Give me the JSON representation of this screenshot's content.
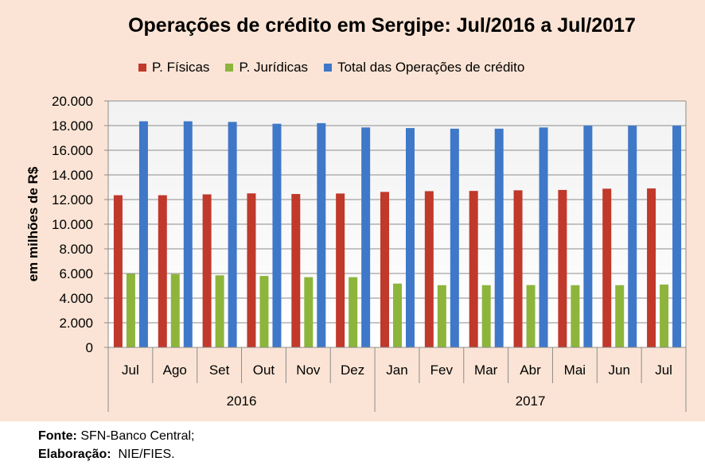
{
  "chart_data": {
    "type": "bar",
    "title": "Operações de crédito em Sergipe: Jul/2016 a Jul/2017",
    "ylabel": "em milhões de R$",
    "xlabel": "",
    "ylim": [
      0,
      20000
    ],
    "yticks": [
      "0",
      "2.000",
      "4.000",
      "6.000",
      "8.000",
      "10.000",
      "12.000",
      "14.000",
      "16.000",
      "18.000",
      "20.000"
    ],
    "ytick_values": [
      0,
      2000,
      4000,
      6000,
      8000,
      10000,
      12000,
      14000,
      16000,
      18000,
      20000
    ],
    "categories": [
      "Jul",
      "Ago",
      "Set",
      "Out",
      "Nov",
      "Dez",
      "Jan",
      "Fev",
      "Mar",
      "Abr",
      "Mai",
      "Jun",
      "Jul"
    ],
    "groups": [
      {
        "label": "2016",
        "count": 6
      },
      {
        "label": "2017",
        "count": 7
      }
    ],
    "series": [
      {
        "name": "P. Físicas",
        "color": "#c0392b",
        "values": [
          12350,
          12350,
          12420,
          12500,
          12450,
          12490,
          12620,
          12680,
          12700,
          12750,
          12780,
          12880,
          12900
        ]
      },
      {
        "name": "P. Jurídicas",
        "color": "#8db53c",
        "values": [
          5980,
          5950,
          5850,
          5800,
          5700,
          5700,
          5180,
          5050,
          5050,
          5060,
          5050,
          5050,
          5100
        ]
      },
      {
        "name": "Total das Operações de crédito",
        "color": "#3f78c8",
        "values": [
          18350,
          18350,
          18300,
          18150,
          18200,
          17850,
          17800,
          17750,
          17750,
          17850,
          18000,
          18000,
          18000
        ]
      }
    ],
    "legend_position": "top",
    "grid": true
  },
  "footer": {
    "source_label": "Fonte:",
    "source_value": " SFN-Banco Central;",
    "prepared_label": "Elaboração:",
    "prepared_value": "  NIE/FIES."
  }
}
